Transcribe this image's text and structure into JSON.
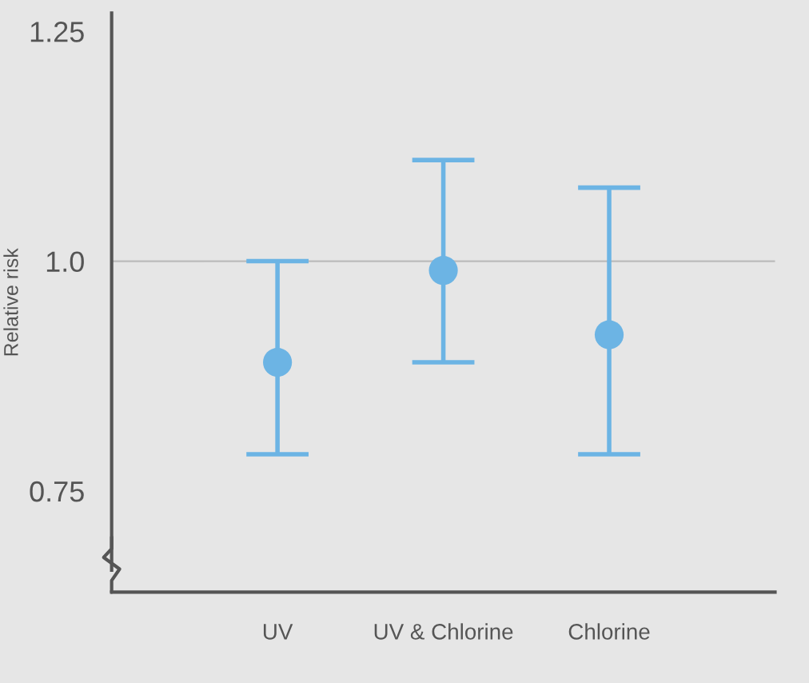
{
  "chart_data": {
    "type": "scatter",
    "ylabel": "Relative risk",
    "categories": [
      "UV",
      "UV & Chlorine",
      "Chlorine"
    ],
    "values": [
      0.89,
      0.99,
      0.92
    ],
    "errors": [
      [
        0.79,
        1.0
      ],
      [
        0.89,
        1.11
      ],
      [
        0.79,
        1.08
      ]
    ],
    "color": "#6cb4e4",
    "marker": "circle",
    "ylim": [
      0.64,
      1.27
    ],
    "yticks": [
      0.75,
      {
        "value": 1.0,
        "label": "1.0"
      },
      1.25
    ],
    "ref_lines": [
      {
        "axis": "y",
        "value": 1.0,
        "label": null,
        "color": "#bbbbbb"
      }
    ],
    "grid": false,
    "legend": false
  }
}
